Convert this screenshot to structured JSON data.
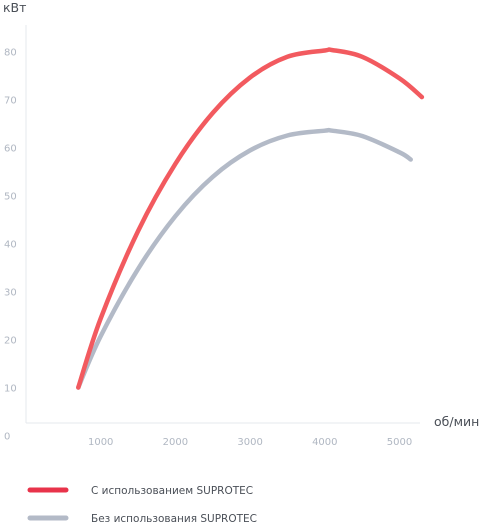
{
  "chart_data": {
    "type": "line",
    "ylabel": "кВт",
    "xlabel": "об/мин",
    "xlim": [
      0,
      5400
    ],
    "ylim": [
      0,
      85
    ],
    "xticks": [
      1000,
      2000,
      3000,
      4000,
      5000
    ],
    "yticks": [
      0,
      10,
      20,
      30,
      40,
      50,
      60,
      70,
      80
    ],
    "grid": false,
    "legend": "bottom",
    "series": [
      {
        "name": "С использованием SUPROTEC",
        "color": "#f25a5f",
        "x": [
          700,
          1000,
          1500,
          2000,
          2500,
          3000,
          3500,
          4000,
          4100,
          4500,
          5000,
          5300
        ],
        "y": [
          10,
          24.4,
          42.6,
          56.6,
          67.2,
          74.6,
          78.9,
          80.2,
          80.3,
          78.9,
          74.4,
          70.5
        ]
      },
      {
        "name": "Без использования SUPROTEC",
        "color": "#b3bac7",
        "x": [
          700,
          1000,
          1500,
          2000,
          2500,
          3000,
          3500,
          4000,
          4100,
          4500,
          5000,
          5150
        ],
        "y": [
          10,
          20.7,
          34.7,
          45.7,
          53.9,
          59.4,
          62.5,
          63.5,
          63.5,
          62.4,
          59.0,
          57.5
        ]
      }
    ]
  }
}
